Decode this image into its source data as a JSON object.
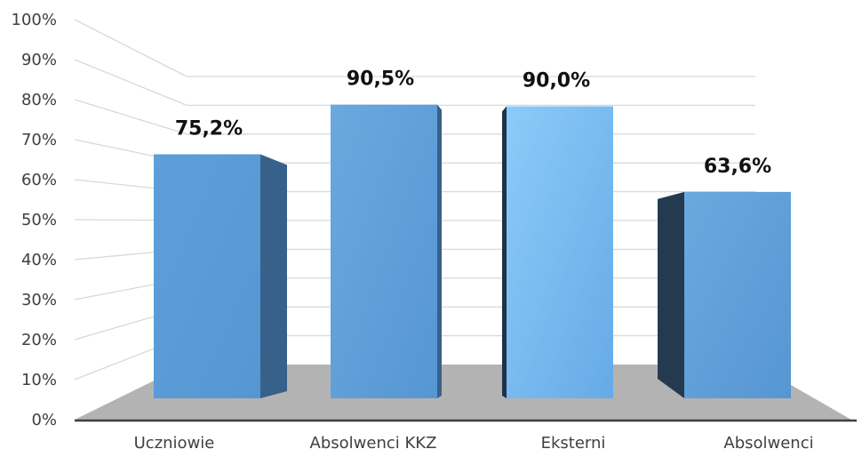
{
  "chart_data": {
    "type": "bar",
    "title": "",
    "xlabel": "",
    "ylabel": "",
    "style": "3d-columns",
    "categories": [
      "Uczniowie",
      "Absolwenci KKZ",
      "Eksterni",
      "Absolwenci"
    ],
    "values": [
      75.2,
      90.5,
      90.0,
      63.6
    ],
    "data_labels": [
      "75,2%",
      "90,5%",
      "90,0%",
      "63,6%"
    ],
    "ylim": [
      0,
      100
    ],
    "y_ticks": [
      0,
      10,
      20,
      30,
      40,
      50,
      60,
      70,
      80,
      90,
      100
    ],
    "y_tick_labels": [
      "0%",
      "10%",
      "20%",
      "30%",
      "40%",
      "50%",
      "60%",
      "70%",
      "80%",
      "90%",
      "100%"
    ],
    "grid": true,
    "legend": "none",
    "colors": {
      "bar_front": [
        "#5b9bd5",
        "#5b9bd5",
        "#7ec3f5",
        "#5b9bd5"
      ],
      "bar_side": [
        "#37618a",
        "#37618a",
        "#1f3347",
        "#243a50"
      ],
      "floor": "#b3b3b3",
      "wall": "#ffffff",
      "gridline": "#d9d9d9",
      "axis_line": "#404040"
    }
  }
}
